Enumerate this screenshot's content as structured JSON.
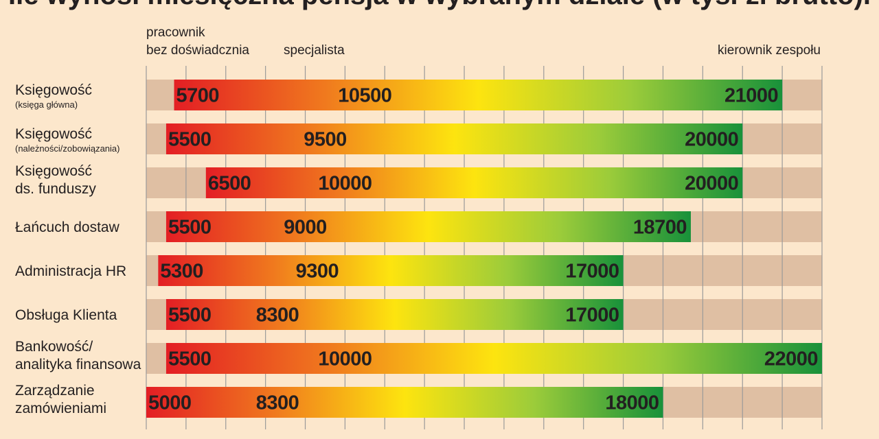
{
  "chart_data": {
    "type": "bar",
    "title": "Ile wynosi miesięczna pensja w wybranym dziale (w tys. zł brutto).",
    "column_headers": [
      {
        "lines": [
          "pracownik",
          "bez doświadcznia"
        ]
      },
      {
        "lines": [
          "specjalista"
        ]
      },
      {
        "lines": [
          "kierownik zespołu"
        ]
      }
    ],
    "xlim": [
      5000,
      22000
    ],
    "grid": true,
    "categories": [
      {
        "lines": [
          "Księgowość"
        ],
        "sub": "(księga główna)"
      },
      {
        "lines": [
          "Księgowość"
        ],
        "sub": "(należności/zobowiązania)"
      },
      {
        "lines": [
          "Księgowość",
          "ds. funduszy"
        ],
        "sub": ""
      },
      {
        "lines": [
          "Łańcuch dostaw"
        ],
        "sub": ""
      },
      {
        "lines": [
          "Administracja HR"
        ],
        "sub": ""
      },
      {
        "lines": [
          "Obsługa Klienta"
        ],
        "sub": ""
      },
      {
        "lines": [
          "Bankowość/",
          "analityka finansowa"
        ],
        "sub": ""
      },
      {
        "lines": [
          "Zarządzanie",
          "zamówieniami"
        ],
        "sub": ""
      }
    ],
    "series": [
      {
        "name": "pracownik bez doświadcznia",
        "values": [
          5700,
          5500,
          6500,
          5500,
          5300,
          5500,
          5500,
          5000
        ]
      },
      {
        "name": "specjalista",
        "values": [
          10500,
          9500,
          10000,
          9000,
          9300,
          8300,
          10000,
          8300
        ]
      },
      {
        "name": "kierownik zespołu",
        "values": [
          21000,
          20000,
          20000,
          18700,
          17000,
          17000,
          22000,
          18000
        ]
      }
    ],
    "colors": {
      "background": "#fce7cc",
      "track": "#dfbfa3",
      "grid": "#9a9a9a",
      "gradient": [
        "#e31e24",
        "#f07a1e",
        "#fde40f",
        "#9ccc3a",
        "#18913a"
      ],
      "text": "#231f20"
    }
  }
}
